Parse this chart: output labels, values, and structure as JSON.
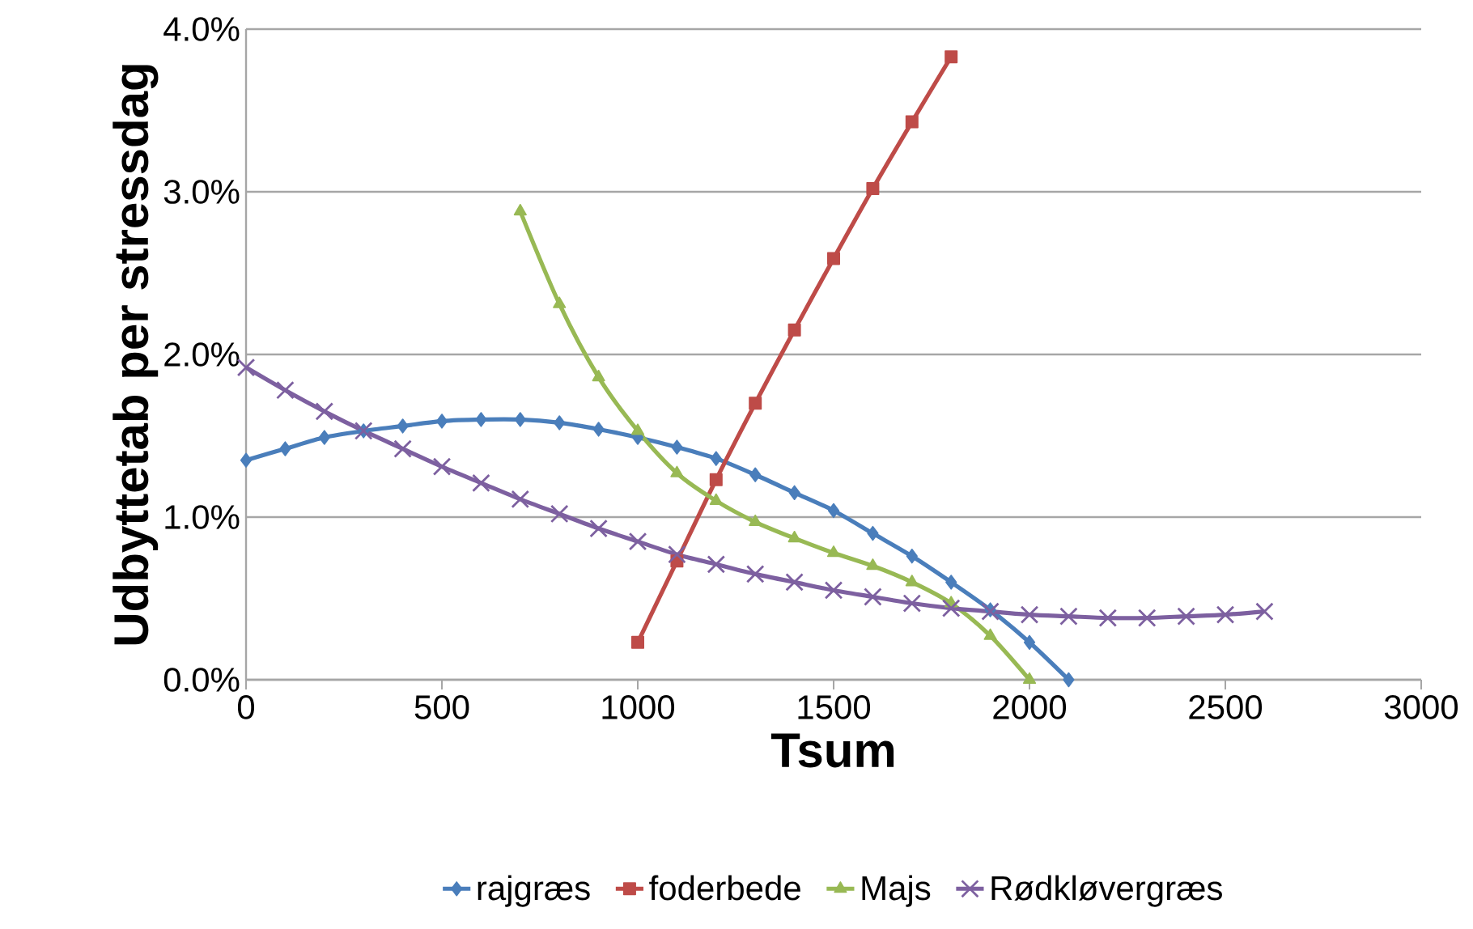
{
  "chart_data": {
    "type": "line",
    "xlabel": "Tsum",
    "ylabel": "Udbyttetab per stressdag",
    "xlim": [
      0,
      3000
    ],
    "xticks": [
      0,
      500,
      1000,
      1500,
      2000,
      2500,
      3000
    ],
    "ylim": [
      0,
      4
    ],
    "yticks": [
      {
        "value": 0,
        "label": "0.0%"
      },
      {
        "value": 1,
        "label": "1.0%"
      },
      {
        "value": 2,
        "label": "2.0%"
      },
      {
        "value": 3,
        "label": "3.0%"
      },
      {
        "value": 4,
        "label": "4.0%"
      }
    ],
    "grid": "y",
    "legend": "bottom",
    "line_style": "solid",
    "series": [
      {
        "name": "rajgræs",
        "color": "#4a7ebb",
        "marker": "diamond",
        "x": [
          0,
          100,
          200,
          300,
          400,
          500,
          600,
          700,
          800,
          900,
          1000,
          1100,
          1200,
          1300,
          1400,
          1500,
          1600,
          1700,
          1800,
          1900,
          2000,
          2100
        ],
        "values": [
          1.35,
          1.42,
          1.49,
          1.53,
          1.56,
          1.59,
          1.6,
          1.6,
          1.58,
          1.54,
          1.49,
          1.43,
          1.36,
          1.26,
          1.15,
          1.04,
          0.9,
          0.76,
          0.6,
          0.43,
          0.23,
          0
        ]
      },
      {
        "name": "foderbede",
        "color": "#be4b48",
        "marker": "square",
        "x": [
          1000,
          1100,
          1200,
          1300,
          1400,
          1500,
          1600,
          1700,
          1800
        ],
        "values": [
          0.23,
          0.73,
          1.23,
          1.7,
          2.15,
          2.59,
          3.02,
          3.43,
          3.83
        ]
      },
      {
        "name": "Majs",
        "color": "#98b954",
        "marker": "triangle",
        "x": [
          700,
          800,
          900,
          1000,
          1100,
          1200,
          1300,
          1400,
          1500,
          1600,
          1700,
          1800,
          1900,
          2000
        ],
        "values": [
          2.88,
          2.31,
          1.86,
          1.53,
          1.27,
          1.1,
          0.97,
          0.87,
          0.78,
          0.7,
          0.6,
          0.47,
          0.27,
          0
        ]
      },
      {
        "name": "Rødkløvergræs",
        "color": "#7d60a0",
        "marker": "cross",
        "x": [
          0,
          100,
          200,
          300,
          400,
          500,
          600,
          700,
          800,
          900,
          1000,
          1100,
          1200,
          1300,
          1400,
          1500,
          1600,
          1700,
          1800,
          1900,
          2000,
          2100,
          2200,
          2300,
          2400,
          2500,
          2600
        ],
        "values": [
          1.92,
          1.78,
          1.65,
          1.53,
          1.42,
          1.31,
          1.21,
          1.11,
          1.02,
          0.93,
          0.85,
          0.77,
          0.71,
          0.65,
          0.6,
          0.55,
          0.51,
          0.47,
          0.44,
          0.42,
          0.4,
          0.39,
          0.38,
          0.38,
          0.39,
          0.4,
          0.42
        ]
      }
    ]
  }
}
